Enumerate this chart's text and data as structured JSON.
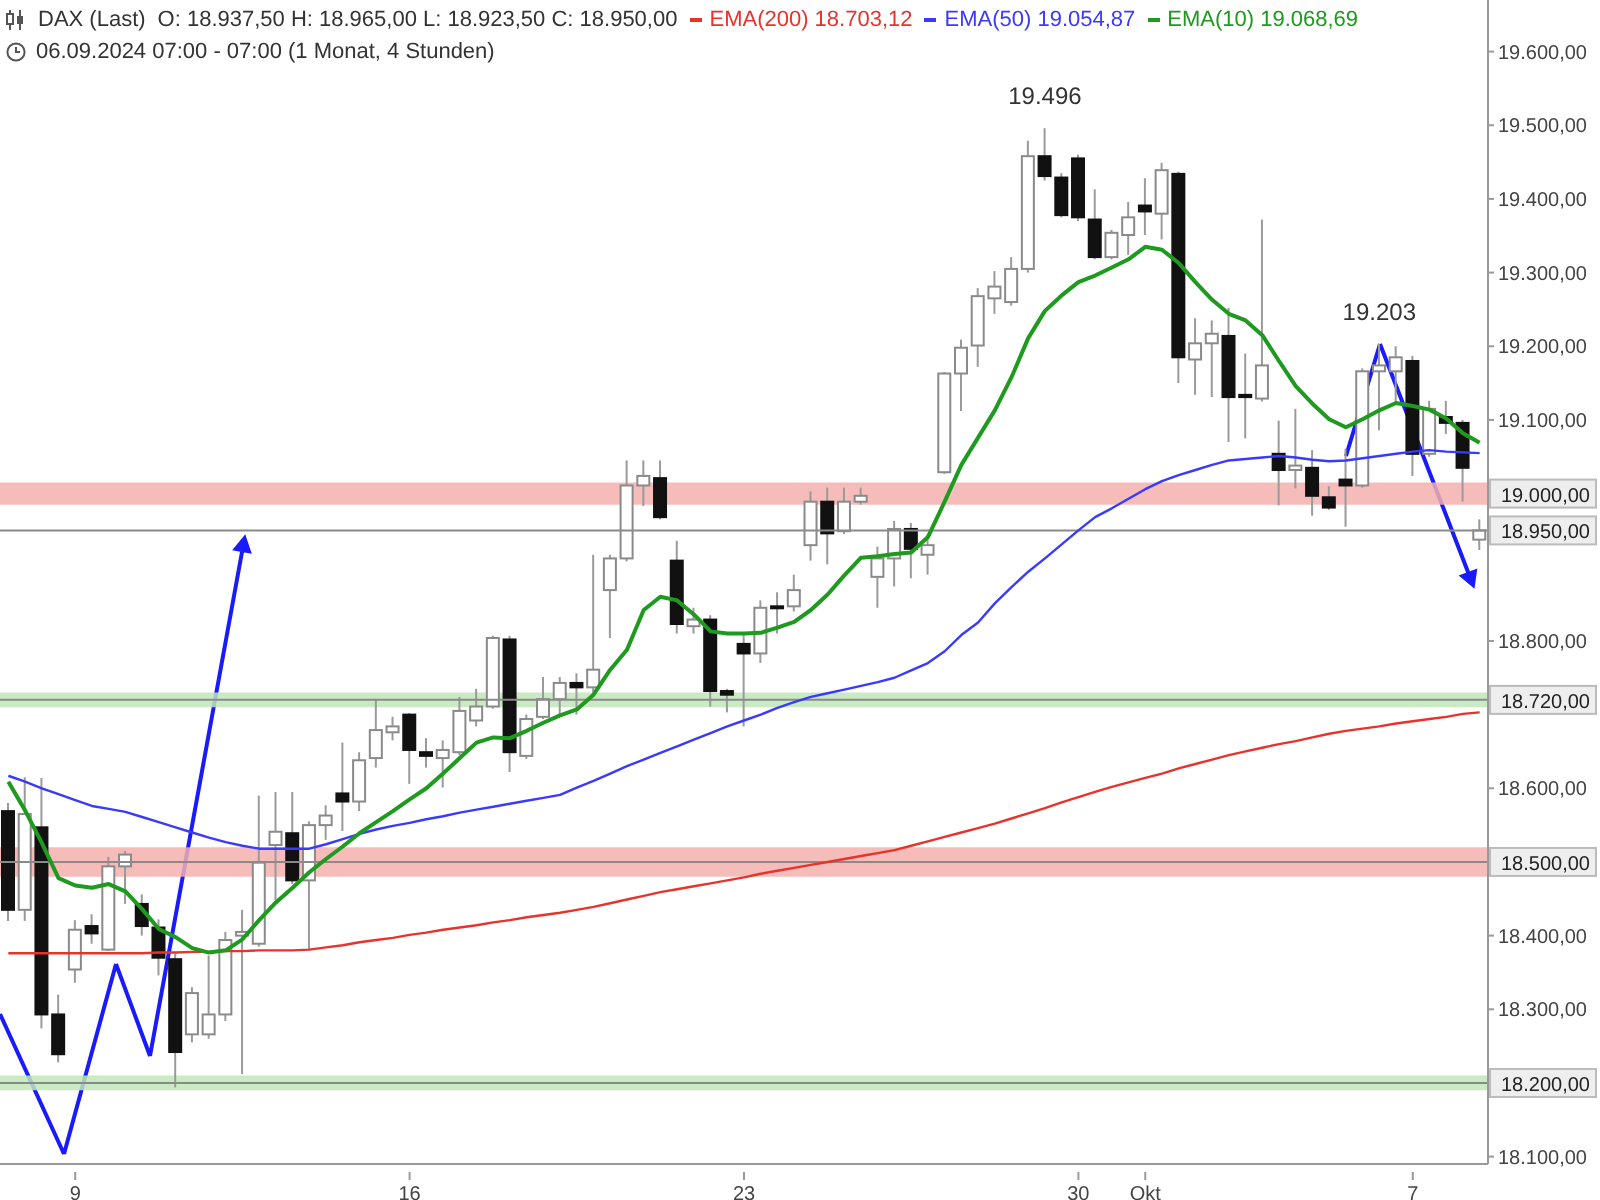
{
  "chart_data": {
    "type": "candlestick",
    "title": "DAX (Last)",
    "subtitle": "06.09.2024 07:00 - 07:00  (1 Monat, 4 Stunden)",
    "annotations": [
      "O: 18.937,50  H: 18.965,00  L: 18.923,50  C: 18.950,00",
      {
        "text": "19.496",
        "y": 19496
      },
      {
        "text": "19.203",
        "y": 19203
      }
    ],
    "categories": [
      null,
      null,
      null,
      null,
      "9",
      null,
      null,
      null,
      null,
      null,
      null,
      null,
      null,
      null,
      null,
      null,
      null,
      null,
      null,
      null,
      null,
      null,
      null,
      null,
      "16",
      null,
      null,
      null,
      null,
      null,
      null,
      null,
      null,
      null,
      null,
      null,
      null,
      null,
      null,
      null,
      null,
      null,
      null,
      null,
      "23",
      null,
      null,
      null,
      null,
      null,
      null,
      null,
      null,
      null,
      null,
      null,
      null,
      null,
      null,
      null,
      null,
      null,
      null,
      null,
      "30",
      null,
      null,
      null,
      "Okt",
      null,
      null,
      null,
      null,
      null,
      null,
      null,
      null,
      null,
      null,
      null,
      null,
      null,
      null,
      null,
      "7",
      null,
      null,
      null,
      null
    ],
    "ohlc": [
      [
        18569,
        18580,
        18420,
        18435
      ],
      [
        18435,
        18615,
        18420,
        18565
      ],
      [
        18547,
        18614,
        18274,
        18293
      ],
      [
        18293,
        18320,
        18228,
        18239
      ],
      [
        18354,
        18421,
        18336,
        18408
      ],
      [
        18413,
        18429,
        18389,
        18403
      ],
      [
        18381,
        18507,
        18379,
        18494
      ],
      [
        18494,
        18515,
        18443,
        18510
      ],
      [
        18443,
        18456,
        18400,
        18413
      ],
      [
        18411,
        18422,
        18346,
        18370
      ],
      [
        18368,
        18376,
        18194,
        18242
      ],
      [
        18266,
        18330,
        18255,
        18322
      ],
      [
        18266,
        18373,
        18260,
        18293
      ],
      [
        18293,
        18405,
        18284,
        18394
      ],
      [
        18400,
        18435,
        18212,
        18405
      ],
      [
        18389,
        18590,
        18385,
        18499
      ],
      [
        18523,
        18595,
        18448,
        18541
      ],
      [
        18539,
        18595,
        18470,
        18475
      ],
      [
        18475,
        18555,
        18381,
        18550
      ],
      [
        18550,
        18577,
        18530,
        18563
      ],
      [
        18593,
        18662,
        18542,
        18582
      ],
      [
        18582,
        18649,
        18569,
        18638
      ],
      [
        18641,
        18721,
        18628,
        18679
      ],
      [
        18676,
        18697,
        18665,
        18684
      ],
      [
        18700,
        18702,
        18606,
        18652
      ],
      [
        18649,
        18668,
        18628,
        18644
      ],
      [
        18641,
        18665,
        18601,
        18652
      ],
      [
        18649,
        18724,
        18645,
        18705
      ],
      [
        18692,
        18735,
        18684,
        18711
      ],
      [
        18711,
        18807,
        18708,
        18804
      ],
      [
        18802,
        18807,
        18622,
        18649
      ],
      [
        18644,
        18700,
        18640,
        18694
      ],
      [
        18697,
        18751,
        18694,
        18721
      ],
      [
        18721,
        18751,
        18700,
        18743
      ],
      [
        18743,
        18756,
        18700,
        18737
      ],
      [
        18737,
        18917,
        18730,
        18761
      ],
      [
        18869,
        18917,
        18804,
        18912
      ],
      [
        18912,
        19045,
        18908,
        19011
      ],
      [
        19011,
        19045,
        18983,
        19024
      ],
      [
        19021,
        19045,
        18965,
        18968
      ],
      [
        18909,
        18936,
        18810,
        18823
      ],
      [
        18820,
        18845,
        18810,
        18829
      ],
      [
        18829,
        18835,
        18711,
        18732
      ],
      [
        18732,
        18735,
        18703,
        18727
      ],
      [
        18796,
        18810,
        18684,
        18783
      ],
      [
        18783,
        18855,
        18770,
        18845
      ],
      [
        18847,
        18866,
        18810,
        18845
      ],
      [
        18847,
        18890,
        18840,
        18869
      ],
      [
        18930,
        19003,
        18909,
        18989
      ],
      [
        18989,
        19008,
        18904,
        18946
      ],
      [
        18949,
        19008,
        18945,
        18989
      ],
      [
        18989,
        19008,
        18985,
        18997
      ],
      [
        18887,
        18928,
        18845,
        18912
      ],
      [
        18912,
        18963,
        18874,
        18952
      ],
      [
        18952,
        18960,
        18885,
        18925
      ],
      [
        18917,
        18945,
        18890,
        18930
      ],
      [
        19029,
        19165,
        19027,
        19163
      ],
      [
        19163,
        19209,
        19112,
        19198
      ],
      [
        19201,
        19279,
        19172,
        19268
      ],
      [
        19265,
        19302,
        19244,
        19281
      ],
      [
        19260,
        19321,
        19255,
        19305
      ],
      [
        19305,
        19479,
        19300,
        19458
      ],
      [
        19458,
        19496,
        19425,
        19431
      ],
      [
        19429,
        19435,
        19375,
        19378
      ],
      [
        19455,
        19460,
        19370,
        19375
      ],
      [
        19372,
        19413,
        19318,
        19321
      ],
      [
        19321,
        19358,
        19318,
        19354
      ],
      [
        19351,
        19396,
        19324,
        19375
      ],
      [
        19391,
        19428,
        19351,
        19383
      ],
      [
        19380,
        19449,
        19345,
        19439
      ],
      [
        19434,
        19437,
        19150,
        19185
      ],
      [
        19182,
        19238,
        19134,
        19204
      ],
      [
        19204,
        19235,
        19131,
        19217
      ],
      [
        19214,
        19252,
        19070,
        19131
      ],
      [
        19134,
        19190,
        19075,
        19131
      ],
      [
        19129,
        19372,
        19125,
        19174
      ],
      [
        19054,
        19099,
        18984,
        19032
      ],
      [
        19032,
        19115,
        19007,
        19038
      ],
      [
        19035,
        19059,
        18970,
        18997
      ],
      [
        18995,
        19010,
        18978,
        18981
      ],
      [
        19019,
        19061,
        18955,
        19011
      ],
      [
        19011,
        19170,
        19008,
        19166
      ],
      [
        19166,
        19203,
        19086,
        19174
      ],
      [
        19166,
        19200,
        19120,
        19185
      ],
      [
        19180,
        19187,
        19024,
        19054
      ],
      [
        19054,
        19126,
        19050,
        19115
      ],
      [
        19104,
        19126,
        19081,
        19096
      ],
      [
        19096,
        19100,
        18989,
        19035
      ],
      [
        18937.5,
        18965,
        18923.5,
        18950
      ]
    ],
    "series": [
      {
        "type": "line",
        "name": "EMA(200)  18.703,12",
        "color": "#e8322c",
        "values": [
          18376,
          18376,
          18376,
          18376,
          18376,
          18376,
          18376,
          18376,
          18376,
          18377,
          18377,
          18378,
          18378,
          18379,
          18379,
          18380,
          18380,
          18380,
          18381,
          18384,
          18387,
          18391,
          18394,
          18397,
          18401,
          18404,
          18408,
          18411,
          18414,
          18418,
          18421,
          18425,
          18428,
          18431,
          18435,
          18439,
          18444,
          18449,
          18454,
          18459,
          18463,
          18467,
          18471,
          18475,
          18479,
          18484,
          18488,
          18492,
          18496,
          18500,
          18504,
          18508,
          18512,
          18516,
          18522,
          18528,
          18534,
          18540,
          18546,
          18552,
          18559,
          18566,
          18573,
          18581,
          18588,
          18595,
          18602,
          18608,
          18614,
          18620,
          18627,
          18633,
          18639,
          18645,
          18650,
          18655,
          18660,
          18664,
          18669,
          18674,
          18678,
          18681,
          18684,
          18688,
          18691,
          18694,
          18697,
          18701,
          18703
        ]
      },
      {
        "type": "line",
        "name": "EMA(50)  19.054,87",
        "color": "#3a3aff",
        "values": [
          18617,
          18609,
          18600,
          18592,
          18584,
          18576,
          18572,
          18568,
          18561,
          18554,
          18547,
          18540,
          18533,
          18527,
          18522,
          18518,
          18518,
          18518,
          18518,
          18524,
          18531,
          18538,
          18544,
          18549,
          18553,
          18558,
          18562,
          18567,
          18571,
          18575,
          18579,
          18583,
          18587,
          18591,
          18601,
          18610,
          18620,
          18630,
          18639,
          18648,
          18657,
          18666,
          18675,
          18684,
          18692,
          18700,
          18709,
          18717,
          18724,
          18729,
          18734,
          18739,
          18744,
          18750,
          18760,
          18770,
          18786,
          18808,
          18825,
          18851,
          18873,
          18894,
          18912,
          18931,
          18950,
          18968,
          18980,
          18993,
          19006,
          19017,
          19025,
          19032,
          19039,
          19045,
          19047,
          19049,
          19051,
          19049,
          19046,
          19044,
          19045,
          19048,
          19051,
          19054,
          19057,
          19059,
          19057,
          19056,
          19055
        ]
      },
      {
        "type": "line",
        "name": "EMA(10)  19.068,69",
        "color": "#1e9a1e",
        "values": [
          18609,
          18570,
          18526,
          18478,
          18468,
          18465,
          18470,
          18460,
          18436,
          18409,
          18398,
          18383,
          18377,
          18380,
          18395,
          18421,
          18445,
          18465,
          18486,
          18504,
          18521,
          18539,
          18554,
          18569,
          18585,
          18600,
          18620,
          18641,
          18662,
          18669,
          18668,
          18678,
          18689,
          18699,
          18707,
          18727,
          18761,
          18788,
          18842,
          18860,
          18855,
          18836,
          18813,
          18810,
          18810,
          18811,
          18818,
          18826,
          18842,
          18863,
          18889,
          18913,
          18915,
          18918,
          18920,
          18941,
          18989,
          19039,
          19076,
          19113,
          19158,
          19211,
          19248,
          19269,
          19287,
          19296,
          19307,
          19318,
          19335,
          19331,
          19313,
          19287,
          19263,
          19244,
          19235,
          19215,
          19180,
          19146,
          19122,
          19101,
          19090,
          19101,
          19113,
          19123,
          19119,
          19114,
          19102,
          19082,
          19069
        ]
      }
    ],
    "ylim": [
      18090,
      19670
    ],
    "yticks": [
      {
        "value": 18100,
        "label": "18.100,00"
      },
      {
        "value": 18300,
        "label": "18.300,00"
      },
      {
        "value": 18400,
        "label": "18.400,00"
      },
      {
        "value": 18600,
        "label": "18.600,00"
      },
      {
        "value": 18800,
        "label": "18.800,00"
      },
      {
        "value": 19100,
        "label": "19.100,00"
      },
      {
        "value": 19200,
        "label": "19.200,00"
      },
      {
        "value": 19300,
        "label": "19.300,00"
      },
      {
        "value": 19400,
        "label": "19.400,00"
      },
      {
        "value": 19500,
        "label": "19.500,00"
      },
      {
        "value": 19600,
        "label": "19.600,00"
      }
    ],
    "ref_lines": [
      {
        "axis": "y",
        "value": 18950,
        "label": "18.950,00",
        "color": "#8a8a8a"
      },
      {
        "axis": "y",
        "value": 18720,
        "label": "18.720,00",
        "color": "#8a8a8a"
      },
      {
        "axis": "y",
        "value": 18500,
        "label": "18.500,00",
        "color": "#8a8a8a"
      },
      {
        "axis": "y",
        "value": 18200,
        "label": "18.200,00",
        "color": "#8a8a8a"
      }
    ],
    "bands": [
      {
        "axis": "y",
        "from": 18985,
        "to": 19015,
        "label": "19.000,00",
        "color": "#f3b0ae"
      },
      {
        "axis": "y",
        "from": 18710,
        "to": 18730,
        "color": "#bfe6b8"
      },
      {
        "axis": "y",
        "from": 18480,
        "to": 18520,
        "color": "#f3b0ae"
      },
      {
        "axis": "y",
        "from": 18190,
        "to": 18210,
        "color": "#bfe6b8"
      }
    ],
    "legend": "top right",
    "marker": "none"
  }
}
